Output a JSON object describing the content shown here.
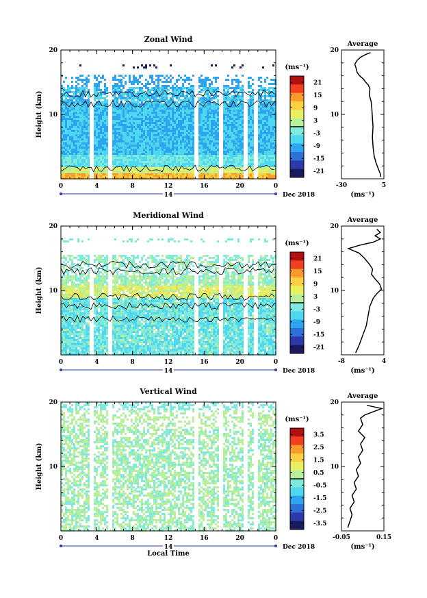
{
  "chart_data": [
    {
      "type": "heatmap",
      "title": "Zonal Wind",
      "ylabel": "Height (km)",
      "ylim": [
        0,
        20
      ],
      "y_ticks": [
        "10",
        "20"
      ],
      "x_ticks": [
        "0",
        "4",
        "8",
        "12",
        "16",
        "20",
        "0"
      ],
      "date_day": "14",
      "date_label": "Dec 2018",
      "colorbar": {
        "unit": "(ms⁻¹)",
        "ticks": [
          "21",
          "15",
          "9",
          "3",
          "-3",
          "-9",
          "-15",
          "-21"
        ],
        "range": [
          -24,
          24
        ]
      },
      "profile": {
        "title": "Average",
        "xlabel": "(ms⁻¹)",
        "xlim": [
          -30,
          5
        ],
        "x_ticks": [
          "-30",
          "5"
        ],
        "ylim": [
          0,
          20
        ],
        "y_ticks": [
          "10",
          "20"
        ],
        "points": [
          [
            2.5,
            0.3
          ],
          [
            2.0,
            0.8
          ],
          [
            0.5,
            1.5
          ],
          [
            -1.5,
            2.5
          ],
          [
            -3.0,
            3.5
          ],
          [
            -4.0,
            5.0
          ],
          [
            -4.5,
            6.5
          ],
          [
            -4.0,
            8.0
          ],
          [
            -4.5,
            9.5
          ],
          [
            -5.0,
            11.0
          ],
          [
            -5.5,
            12.0
          ],
          [
            -7.0,
            13.0
          ],
          [
            -6.5,
            14.0
          ],
          [
            -8.0,
            14.6
          ],
          [
            -10.0,
            15.0
          ],
          [
            -12.0,
            15.5
          ],
          [
            -15.0,
            16.0
          ],
          [
            -17.0,
            16.5
          ],
          [
            -18.0,
            17.2
          ],
          [
            -19.0,
            17.8
          ],
          [
            -17.0,
            18.4
          ],
          [
            -14.0,
            18.9
          ],
          [
            -10.0,
            19.3
          ],
          [
            -6.0,
            19.6
          ]
        ]
      }
    },
    {
      "type": "heatmap",
      "title": "Meridional Wind",
      "ylabel": "Height (km)",
      "ylim": [
        0,
        20
      ],
      "y_ticks": [
        "10",
        "20"
      ],
      "x_ticks": [
        "0",
        "4",
        "8",
        "12",
        "16",
        "20",
        "0"
      ],
      "date_day": "14",
      "date_label": "Dec 2018",
      "colorbar": {
        "unit": "(ms⁻¹)",
        "ticks": [
          "21",
          "15",
          "9",
          "3",
          "-3",
          "-9",
          "-15",
          "-21"
        ],
        "range": [
          -24,
          24
        ]
      },
      "profile": {
        "title": "Average",
        "xlabel": "(ms⁻¹)",
        "xlim": [
          -8,
          4
        ],
        "x_ticks": [
          "-8",
          "4"
        ],
        "ylim": [
          0,
          20
        ],
        "y_ticks": [
          "10",
          "20"
        ],
        "points": [
          [
            -4.0,
            0.3
          ],
          [
            -3.0,
            1.5
          ],
          [
            -2.0,
            3.0
          ],
          [
            -1.0,
            4.5
          ],
          [
            -0.5,
            6.0
          ],
          [
            0.0,
            7.5
          ],
          [
            1.0,
            8.8
          ],
          [
            2.0,
            9.5
          ],
          [
            3.3,
            10.2
          ],
          [
            2.8,
            11.0
          ],
          [
            1.5,
            11.8
          ],
          [
            0.5,
            12.5
          ],
          [
            0.8,
            13.3
          ],
          [
            0.0,
            14.0
          ],
          [
            -1.5,
            15.0
          ],
          [
            -3.0,
            15.8
          ],
          [
            -6.0,
            16.5
          ],
          [
            -3.0,
            17.0
          ],
          [
            1.0,
            17.5
          ],
          [
            3.0,
            18.0
          ],
          [
            1.5,
            18.5
          ],
          [
            3.0,
            19.0
          ],
          [
            2.0,
            19.5
          ]
        ]
      }
    },
    {
      "type": "heatmap",
      "title": "Vertical Wind",
      "ylabel": "Height (km)",
      "xlabel": "Local Time",
      "ylim": [
        0,
        20
      ],
      "y_ticks": [
        "10",
        "20"
      ],
      "x_ticks": [
        "0",
        "4",
        "8",
        "12",
        "16",
        "20",
        "0"
      ],
      "date_day": "14",
      "date_label": "Dec 2018",
      "colorbar": {
        "unit": "(ms⁻¹)",
        "ticks": [
          "3.5",
          "2.5",
          "1.5",
          "0.5",
          "-0.5",
          "-1.5",
          "-2.5",
          "-3.5"
        ],
        "range": [
          -4,
          4
        ]
      },
      "profile": {
        "title": "Average",
        "xlabel": "(ms⁻¹)",
        "xlim": [
          -0.05,
          0.15
        ],
        "x_ticks": [
          "-0.05",
          "0.15"
        ],
        "ylim": [
          0,
          20
        ],
        "y_ticks": [
          "10",
          "20"
        ],
        "points": [
          [
            -0.02,
            0.5
          ],
          [
            -0.01,
            1.5
          ],
          [
            0.0,
            2.5
          ],
          [
            -0.01,
            3.5
          ],
          [
            0.01,
            4.5
          ],
          [
            0.0,
            5.5
          ],
          [
            0.02,
            6.5
          ],
          [
            0.01,
            7.5
          ],
          [
            0.03,
            8.5
          ],
          [
            0.02,
            9.5
          ],
          [
            0.04,
            10.5
          ],
          [
            0.03,
            11.5
          ],
          [
            0.05,
            12.5
          ],
          [
            0.04,
            13.5
          ],
          [
            0.06,
            14.5
          ],
          [
            0.03,
            15.5
          ],
          [
            0.05,
            16.5
          ],
          [
            0.04,
            17.5
          ],
          [
            0.06,
            18.0
          ],
          [
            0.1,
            18.5
          ],
          [
            0.14,
            19.0
          ],
          [
            0.07,
            19.5
          ]
        ]
      }
    }
  ],
  "colors": {
    "scale": [
      "#1a1a5e",
      "#2b3aa8",
      "#2f6fd8",
      "#2ea4f0",
      "#4dd8f0",
      "#80eadc",
      "#b8f09a",
      "#e8f060",
      "#fcd040",
      "#fb9a2c",
      "#f04020",
      "#b01010"
    ]
  }
}
